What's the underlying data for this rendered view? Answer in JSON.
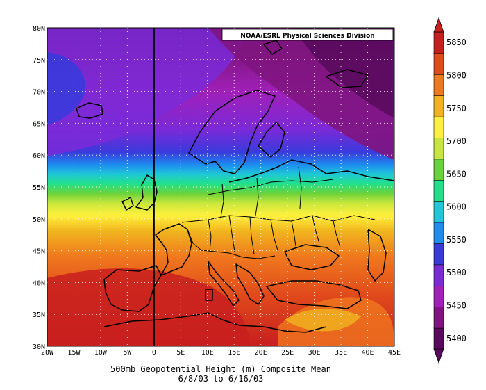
{
  "credit": "NOAA/ESRL Physical Sciences Division",
  "caption": {
    "line1": "500mb Geopotential Height (m) Composite Mean",
    "line2": "6/8/03  to 6/16/03"
  },
  "axes": {
    "lat_labels": [
      "30N",
      "35N",
      "40N",
      "45N",
      "50N",
      "55N",
      "60N",
      "65N",
      "70N",
      "75N",
      "80N"
    ],
    "lat_values": [
      30,
      35,
      40,
      45,
      50,
      55,
      60,
      65,
      70,
      75,
      80
    ],
    "lon_labels": [
      "20W",
      "15W",
      "10W",
      "5W",
      "0",
      "5E",
      "10E",
      "15E",
      "20E",
      "25E",
      "30E",
      "35E",
      "40E",
      "45E"
    ],
    "lon_values": [
      -20,
      -15,
      -10,
      -5,
      0,
      5,
      10,
      15,
      20,
      25,
      30,
      35,
      40,
      45
    ],
    "lon_range": [
      -20,
      45
    ],
    "lat_range": [
      30,
      80
    ],
    "grid": "dotted"
  },
  "colorbar": {
    "labels": [
      "5850",
      "5800",
      "5750",
      "5700",
      "5650",
      "5600",
      "5550",
      "5500",
      "5450",
      "5400"
    ],
    "min": 5400,
    "max": 5850,
    "step": 50,
    "colors": [
      "#5a0a5e",
      "#7f1580",
      "#a020b8",
      "#7a2ad8",
      "#3a3adc",
      "#1e8cf0",
      "#1ec8d6",
      "#22e08a",
      "#6ad23a",
      "#c8e63c",
      "#fff03c",
      "#f0b41e",
      "#f0781e",
      "#e04a1c",
      "#c81e1e"
    ]
  }
}
